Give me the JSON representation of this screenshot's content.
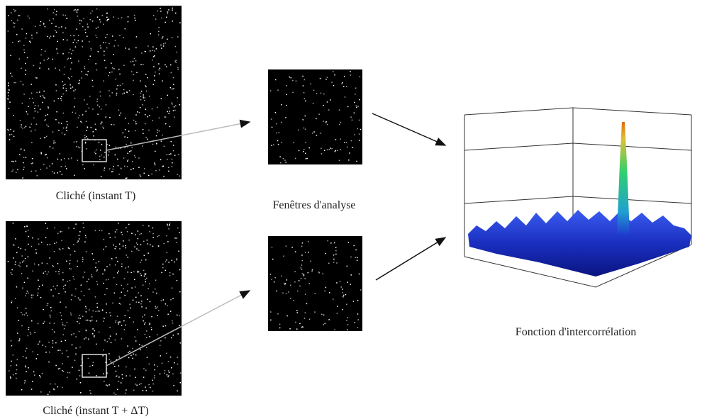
{
  "images": [
    {
      "label": "Cliché (instant T)"
    },
    {
      "label": "Cliché (instant T + ΔT)"
    }
  ],
  "windows": {
    "label": "Fenêtres d'analyse"
  },
  "correlation": {
    "label": "Fonction d'intercorrélation"
  }
}
